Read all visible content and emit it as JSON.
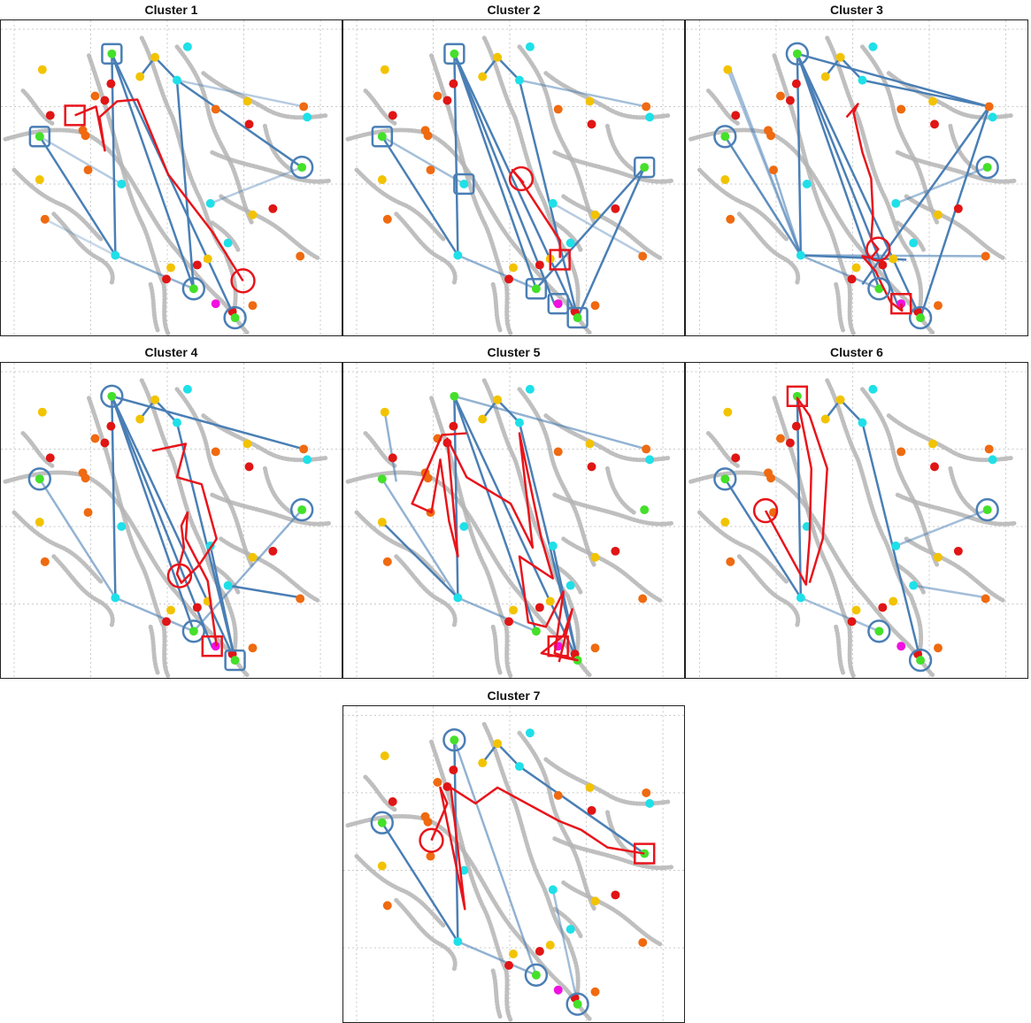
{
  "clusters": [
    {
      "title": "Cluster 1"
    },
    {
      "title": "Cluster 2"
    },
    {
      "title": "Cluster 3"
    },
    {
      "title": "Cluster 4"
    },
    {
      "title": "Cluster 5"
    },
    {
      "title": "Cluster 6"
    },
    {
      "title": "Cluster 7"
    }
  ],
  "colors": {
    "highlight_path": "#e8141b",
    "flow_lines": "#4a7fb5",
    "rivers": "#b4b4b4",
    "gridlines": "#c8c8c8",
    "node_gold": "#f2c300",
    "node_orange": "#ef6a10",
    "node_red": "#e01515",
    "node_cyan": "#1ee0e8",
    "node_green": "#44e02a",
    "node_magenta": "#f010e0"
  }
}
